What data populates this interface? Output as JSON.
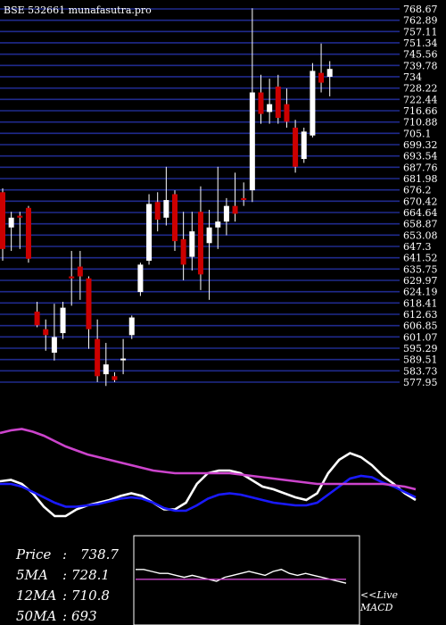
{
  "title": "BSE 532661 munafasutra.pro",
  "colors": {
    "background": "#000000",
    "gridline": "#1f2a8c",
    "bull_candle": "#ffffff",
    "bear_candle": "#cc0000",
    "wick": "#ffffff",
    "price_text": "#ffffff",
    "ma_short": "#ffffff",
    "ma_mid": "#1a1aff",
    "ma_long": "#cc44cc",
    "macd_line": "#ffffff",
    "macd_signal": "#cc44cc"
  },
  "stats": {
    "price_label": "Price",
    "price_value": "738.7",
    "ma5_label": "5MA",
    "ma5_value": "728.1",
    "ma12_label": "12MA",
    "ma12_value": "710.8",
    "ma50_label": "50MA",
    "ma50_value": "693"
  },
  "macd_label": "<<Live MACD",
  "chart_data": [
    {
      "type": "candlestick",
      "title": "BSE 532661 munafasutra.pro",
      "ylim": [
        577.95,
        768.67
      ],
      "y_tick_labels": [
        "768.67",
        "762.89",
        "757.11",
        "751.34",
        "745.56",
        "739.78",
        "734",
        "728.22",
        "722.44",
        "716.66",
        "710.88",
        "705.1",
        "699.32",
        "693.54",
        "687.76",
        "681.98",
        "676.2",
        "670.42",
        "664.64",
        "658.87",
        "653.08",
        "647.3",
        "641.52",
        "635.75",
        "629.97",
        "624.19",
        "618.41",
        "612.63",
        "606.85",
        "601.07",
        "595.29",
        "589.51",
        "583.73",
        "577.95"
      ],
      "grid": true,
      "candles": [
        {
          "o": 675,
          "h": 677,
          "l": 640,
          "c": 646
        },
        {
          "o": 657,
          "h": 665,
          "l": 645,
          "c": 662
        },
        {
          "o": 663,
          "h": 665,
          "l": 646,
          "c": 662
        },
        {
          "o": 667,
          "h": 668,
          "l": 639,
          "c": 641
        },
        {
          "o": 614,
          "h": 619,
          "l": 606,
          "c": 607
        },
        {
          "o": 605,
          "h": 610,
          "l": 594,
          "c": 602
        },
        {
          "o": 593,
          "h": 618,
          "l": 589,
          "c": 601
        },
        {
          "o": 603,
          "h": 619,
          "l": 600,
          "c": 616
        },
        {
          "o": 632,
          "h": 645,
          "l": 617,
          "c": 631
        },
        {
          "o": 637,
          "h": 645,
          "l": 620,
          "c": 632
        },
        {
          "o": 631,
          "h": 632,
          "l": 595,
          "c": 605
        },
        {
          "o": 600,
          "h": 610,
          "l": 578,
          "c": 581
        },
        {
          "o": 582,
          "h": 598,
          "l": 576,
          "c": 587
        },
        {
          "o": 581,
          "h": 583,
          "l": 578,
          "c": 579
        },
        {
          "o": 590,
          "h": 600,
          "l": 582,
          "c": 590
        },
        {
          "o": 602,
          "h": 612,
          "l": 600,
          "c": 611
        },
        {
          "o": 624,
          "h": 639,
          "l": 622,
          "c": 638
        },
        {
          "o": 640,
          "h": 674,
          "l": 638,
          "c": 669
        },
        {
          "o": 670,
          "h": 675,
          "l": 655,
          "c": 661
        },
        {
          "o": 662,
          "h": 688,
          "l": 658,
          "c": 671
        },
        {
          "o": 674,
          "h": 676,
          "l": 645,
          "c": 650
        },
        {
          "o": 651,
          "h": 665,
          "l": 630,
          "c": 638
        },
        {
          "o": 642,
          "h": 665,
          "l": 635,
          "c": 655
        },
        {
          "o": 665,
          "h": 678,
          "l": 625,
          "c": 633
        },
        {
          "o": 649,
          "h": 666,
          "l": 620,
          "c": 657
        },
        {
          "o": 657,
          "h": 688,
          "l": 646,
          "c": 660
        },
        {
          "o": 660,
          "h": 672,
          "l": 653,
          "c": 668
        },
        {
          "o": 668,
          "h": 685,
          "l": 660,
          "c": 664
        },
        {
          "o": 672,
          "h": 680,
          "l": 668,
          "c": 671
        },
        {
          "o": 676,
          "h": 769,
          "l": 670,
          "c": 726
        },
        {
          "o": 726,
          "h": 735,
          "l": 710,
          "c": 715
        },
        {
          "o": 716,
          "h": 733,
          "l": 710,
          "c": 720
        },
        {
          "o": 729,
          "h": 735,
          "l": 710,
          "c": 713
        },
        {
          "o": 720,
          "h": 728,
          "l": 708,
          "c": 711
        },
        {
          "o": 708,
          "h": 712,
          "l": 685,
          "c": 688
        },
        {
          "o": 692,
          "h": 708,
          "l": 690,
          "c": 706
        },
        {
          "o": 704,
          "h": 741,
          "l": 703,
          "c": 737
        },
        {
          "o": 736,
          "h": 751,
          "l": 726,
          "c": 731
        },
        {
          "o": 734,
          "h": 742,
          "l": 724,
          "c": 738
        }
      ]
    },
    {
      "type": "line",
      "series": [
        {
          "color_key": "ma_short",
          "values": [
            54,
            55,
            52,
            45,
            35,
            28,
            28,
            33,
            36,
            38,
            40,
            43,
            45,
            43,
            38,
            33,
            33,
            38,
            52,
            60,
            62,
            62,
            60,
            55,
            50,
            48,
            45,
            42,
            40,
            45,
            60,
            70,
            75,
            72,
            66,
            58,
            52,
            45,
            40
          ]
        },
        {
          "color_key": "ma_mid",
          "values": [
            52,
            52,
            50,
            46,
            42,
            38,
            35,
            35,
            36,
            37,
            39,
            41,
            42,
            41,
            38,
            34,
            32,
            32,
            36,
            41,
            44,
            45,
            44,
            42,
            40,
            38,
            37,
            36,
            36,
            38,
            44,
            50,
            56,
            58,
            57,
            53,
            50,
            46,
            42
          ]
        },
        {
          "color_key": "ma_long",
          "values": [
            90,
            92,
            93,
            91,
            88,
            84,
            80,
            77,
            74,
            72,
            70,
            68,
            66,
            64,
            62,
            61,
            60,
            60,
            60,
            60,
            60,
            60,
            59,
            58,
            57,
            56,
            55,
            54,
            53,
            52,
            52,
            52,
            52,
            52,
            52,
            52,
            51,
            50,
            48
          ]
        }
      ]
    },
    {
      "type": "line",
      "series": [
        {
          "color_key": "macd_line",
          "values": [
            6,
            6,
            5,
            4,
            4,
            3,
            2,
            3,
            2,
            1,
            0,
            2,
            3,
            4,
            5,
            4,
            3,
            5,
            6,
            4,
            3,
            4,
            3,
            2,
            1,
            0,
            -1
          ]
        },
        {
          "color_key": "macd_signal",
          "values": [
            1,
            1,
            1,
            1,
            1,
            1,
            1,
            1,
            1,
            1,
            1,
            1,
            1,
            1,
            1,
            1,
            1,
            1,
            1,
            1,
            1,
            1,
            1,
            1,
            1,
            1,
            1
          ]
        }
      ]
    }
  ]
}
